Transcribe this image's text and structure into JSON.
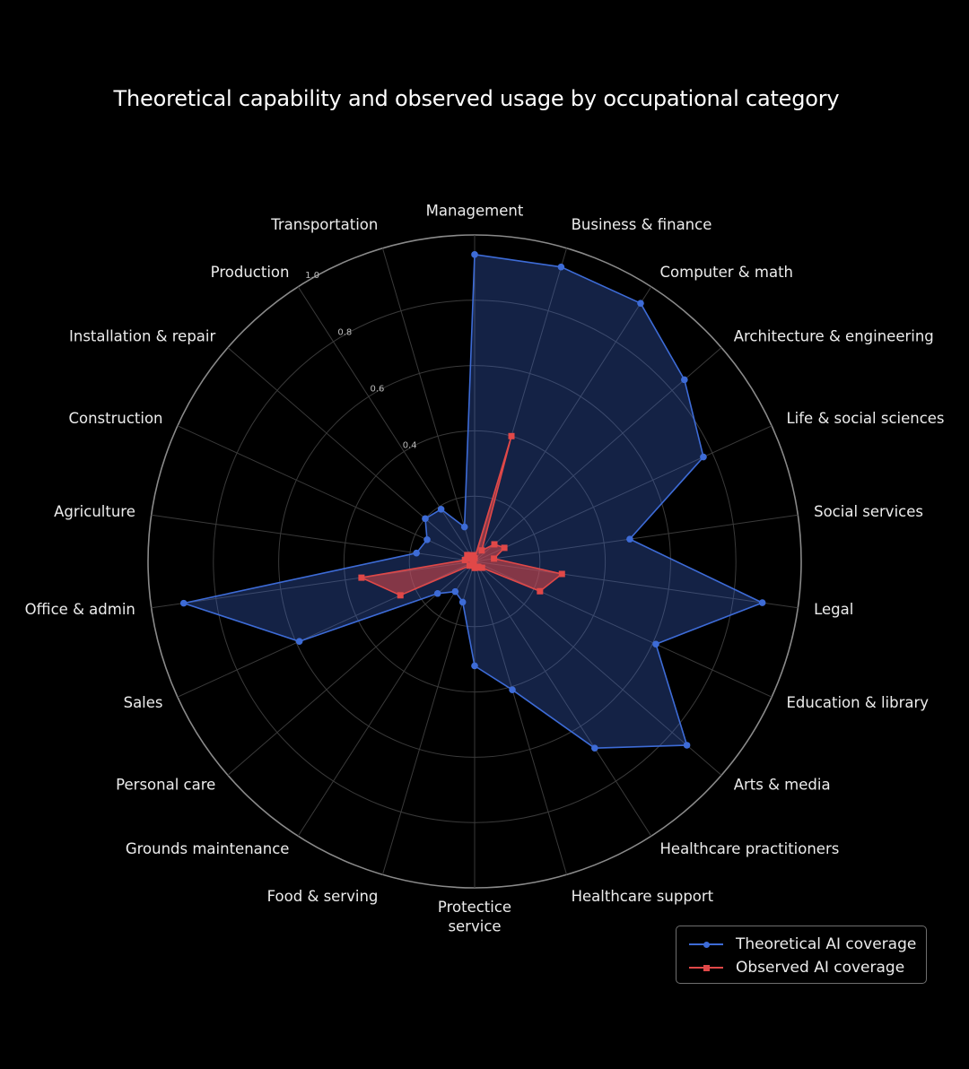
{
  "chart_data": {
    "type": "radar",
    "title": "Theoretical capability and observed usage by occupational category",
    "categories": [
      "Management",
      "Business & finance",
      "Computer & math",
      "Architecture & engineering",
      "Life & social sciences",
      "Social services",
      "Legal",
      "Education & library",
      "Arts & media",
      "Healthcare practitioners",
      "Healthcare support",
      "Protectice service",
      "Food & serving",
      "Grounds maintenance",
      "Personal care",
      "Sales",
      "Office & admin",
      "Agriculture",
      "Construction",
      "Installation & repair",
      "Production",
      "Transportation"
    ],
    "rlim": [
      0,
      1.0
    ],
    "ticks": [
      {
        "value": 0.4,
        "label": "0.4"
      },
      {
        "value": 0.6,
        "label": "0.6"
      },
      {
        "value": 0.8,
        "label": "0.8"
      },
      {
        "value": 1.0,
        "label": "1.0"
      }
    ],
    "series": [
      {
        "name": "Theoretical AI coverage",
        "color": "#3d6bd6",
        "marker": "circle",
        "values": [
          0.94,
          0.94,
          0.94,
          0.85,
          0.77,
          0.48,
          0.89,
          0.61,
          0.86,
          0.68,
          0.41,
          0.32,
          0.13,
          0.11,
          0.15,
          0.59,
          0.9,
          0.18,
          0.16,
          0.2,
          0.19,
          0.11
        ]
      },
      {
        "name": "Observed AI coverage",
        "color": "#e04848",
        "marker": "square",
        "values": [
          0.01,
          0.4,
          0.04,
          0.08,
          0.1,
          0.06,
          0.27,
          0.22,
          0.03,
          0.02,
          0.02,
          0.02,
          0.01,
          0.01,
          0.02,
          0.25,
          0.35,
          0.03,
          0.02,
          0.03,
          0.01,
          0.02
        ]
      }
    ],
    "legend": {
      "position": "bottom-right"
    }
  }
}
